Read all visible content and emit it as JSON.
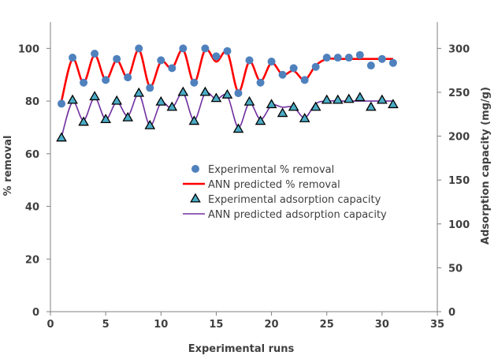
{
  "chart_data": {
    "type": "line",
    "xlabel": "Experimental runs",
    "ylabel_left": "% removal",
    "ylabel_right": "Adsorption capacity (mg/g)",
    "xlim": [
      0,
      35
    ],
    "ylim_left": [
      0,
      110
    ],
    "ylim_right": [
      0,
      330
    ],
    "x_ticks": [
      "0",
      "5",
      "10",
      "15",
      "20",
      "25",
      "30",
      "35"
    ],
    "y_left_ticks": [
      "0",
      "20",
      "40",
      "60",
      "80",
      "100"
    ],
    "y_right_ticks": [
      "0",
      "50",
      "100",
      "150",
      "200",
      "250",
      "300"
    ],
    "grid": false,
    "legend_position": "center",
    "colors": {
      "exp_removal": "#4f81bd",
      "ann_removal": "#ff0000",
      "exp_adsorption_fill": "#4bacc6",
      "exp_adsorption_edge": "#000000",
      "ann_adsorption": "#7030a0",
      "axis": "#808080"
    },
    "series": [
      {
        "name": "Experimental % removal",
        "axis": "left",
        "marker": "circle",
        "x": [
          1,
          2,
          3,
          4,
          5,
          6,
          7,
          8,
          9,
          10,
          11,
          12,
          13,
          14,
          15,
          16,
          17,
          18,
          19,
          20,
          21,
          22,
          23,
          24,
          25,
          26,
          27,
          28,
          29,
          30,
          31
        ],
        "values": [
          79,
          96.5,
          87,
          98,
          88,
          96,
          89,
          100,
          85,
          95.5,
          92.5,
          100,
          87,
          100,
          97,
          99,
          83,
          95.5,
          87,
          95,
          90,
          92.5,
          88,
          93,
          96.5,
          96.5,
          96.5,
          97.5,
          93.5,
          96,
          94.5
        ]
      },
      {
        "name": "ANN predicted % removal",
        "axis": "left",
        "marker": "line",
        "x": [
          1,
          2,
          3,
          4,
          5,
          6,
          7,
          8,
          9,
          10,
          11,
          12,
          13,
          14,
          15,
          16,
          17,
          18,
          19,
          20,
          21,
          22,
          23,
          24,
          25,
          26,
          27,
          28,
          29,
          30,
          31
        ],
        "values": [
          80,
          96,
          87,
          97.5,
          88,
          95.5,
          89,
          99.5,
          85.5,
          95,
          92.5,
          99.5,
          87,
          99.5,
          95,
          98.5,
          83.5,
          95,
          87.5,
          94.5,
          90,
          91.5,
          88,
          93.5,
          96,
          96,
          96,
          96,
          96,
          96,
          96
        ]
      },
      {
        "name": "Experimental adsorption capacity",
        "axis": "right",
        "marker": "triangle",
        "x": [
          1,
          2,
          3,
          4,
          5,
          6,
          7,
          8,
          9,
          10,
          11,
          12,
          13,
          14,
          15,
          16,
          17,
          18,
          19,
          20,
          21,
          22,
          23,
          24,
          25,
          26,
          27,
          28,
          29,
          30,
          31
        ],
        "values": [
          198,
          241,
          216,
          245,
          219,
          240,
          221,
          249,
          212,
          239,
          233,
          250,
          217,
          250,
          243,
          247,
          208,
          239,
          217,
          236,
          226,
          233,
          220,
          233,
          241,
          241,
          242,
          244,
          233,
          241,
          236
        ]
      },
      {
        "name": "ANN predicted adsorption capacity",
        "axis": "right",
        "marker": "line",
        "x": [
          1,
          2,
          3,
          4,
          5,
          6,
          7,
          8,
          9,
          10,
          11,
          12,
          13,
          14,
          15,
          16,
          17,
          18,
          19,
          20,
          21,
          22,
          23,
          24,
          25,
          26,
          27,
          28,
          29,
          30,
          31
        ],
        "values": [
          199,
          239,
          218,
          244,
          219,
          239,
          223,
          248,
          212,
          238,
          232,
          249,
          218,
          249,
          242,
          246,
          210,
          238,
          219,
          235,
          233,
          233,
          221,
          237,
          240,
          240,
          240,
          240,
          240,
          240,
          240
        ]
      }
    ]
  }
}
